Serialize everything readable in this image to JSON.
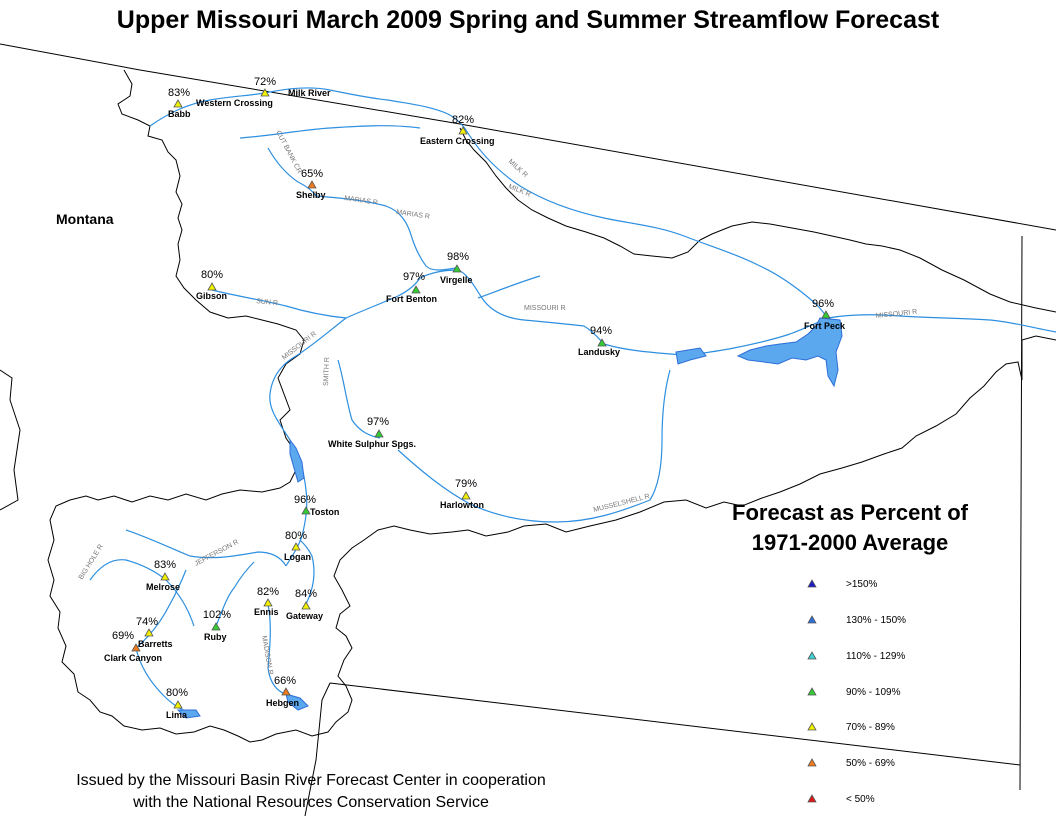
{
  "title": "Upper Missouri March 2009 Spring and Summer Streamflow Forecast",
  "state_label": "Montana",
  "legend": {
    "title_line1": "Forecast as Percent of",
    "title_line2": "1971-2000 Average",
    "items": [
      {
        "label": ">150%",
        "color": "#1b1bc8"
      },
      {
        "label": "130% - 150%",
        "color": "#2f6fd8"
      },
      {
        "label": "110% - 129%",
        "color": "#3fd0d0"
      },
      {
        "label": "90% - 109%",
        "color": "#33cc33"
      },
      {
        "label": "70% - 89%",
        "color": "#f0f000"
      },
      {
        "label": "50% - 69%",
        "color": "#f07a1a"
      },
      {
        "label": "< 50%",
        "color": "#e01818"
      }
    ]
  },
  "credit_line1": "Issued by the Missouri Basin River Forecast Center in cooperation",
  "credit_line2": "with the National Resources Conservation Service",
  "stations": [
    {
      "name": "Babb",
      "pct": "83%"
    },
    {
      "name": "Western Crossing",
      "pct": "72%"
    },
    {
      "name": "Milk River",
      "pct": ""
    },
    {
      "name": "Eastern Crossing",
      "pct": "82%"
    },
    {
      "name": "Shelby",
      "pct": "65%"
    },
    {
      "name": "Virgelle",
      "pct": "98%"
    },
    {
      "name": "Fort Benton",
      "pct": "97%"
    },
    {
      "name": "Gibson",
      "pct": "80%"
    },
    {
      "name": "Fort Peck",
      "pct": "96%"
    },
    {
      "name": "Landusky",
      "pct": "94%"
    },
    {
      "name": "White Sulphur Spgs.",
      "pct": "97%"
    },
    {
      "name": "Harlowton",
      "pct": "79%"
    },
    {
      "name": "Toston",
      "pct": "96%"
    },
    {
      "name": "Logan",
      "pct": "80%"
    },
    {
      "name": "Melrose",
      "pct": "83%"
    },
    {
      "name": "Ennis",
      "pct": "82%"
    },
    {
      "name": "Gateway",
      "pct": "84%"
    },
    {
      "name": "Ruby",
      "pct": "102%"
    },
    {
      "name": "Barretts",
      "pct": "74%"
    },
    {
      "name": "Clark Canyon",
      "pct": "69%"
    },
    {
      "name": "Lima",
      "pct": "80%"
    },
    {
      "name": "Hebgen",
      "pct": "66%"
    }
  ],
  "rivers": [
    "MILK R",
    "MILK R",
    "CUT BANK CR",
    "MARIAS R",
    "MARIAS R",
    "MISSOURI R",
    "MISSOURI R",
    "SUN R",
    "MISSOURI R",
    "SMITH R",
    "MUSSELSHELL R",
    "JEFFERSON R",
    "BIG HOLE R",
    "MADISON R"
  ]
}
